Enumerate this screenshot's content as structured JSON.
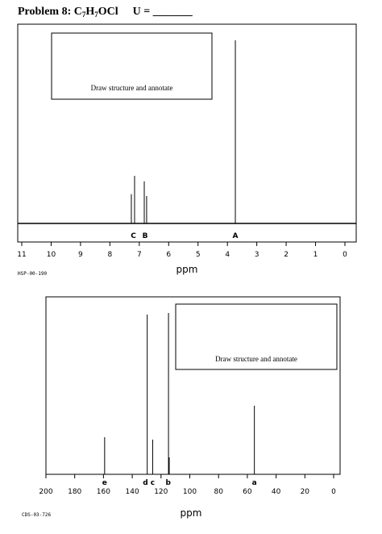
{
  "header": {
    "problem": "Problem 8:",
    "formula": [
      "C",
      "7",
      "H",
      "7",
      "OCl"
    ],
    "unsaturation": "U = _______"
  },
  "chart_data": [
    {
      "type": "spectrum",
      "x_label": "ppm",
      "code": "HSP-00-190",
      "box_text": "Draw structure and annotate",
      "xlim": [
        11,
        0
      ],
      "xticks": [
        11,
        10,
        9,
        8,
        7,
        6,
        5,
        4,
        3,
        2,
        1,
        0
      ],
      "ylim": [
        0,
        100
      ],
      "color": "#000000",
      "x": [
        7.27,
        7.16,
        6.83,
        6.75,
        3.73
      ],
      "values": [
        16,
        26,
        23,
        15,
        100
      ],
      "annotations": [
        {
          "text": "C",
          "x": 7.2
        },
        {
          "text": "B",
          "x": 6.8
        },
        {
          "text": "A",
          "x": 3.73
        }
      ]
    },
    {
      "type": "spectrum",
      "x_label": "ppm",
      "code": "CDS-03-726",
      "box_text": "Draw structure and annotate",
      "xlim": [
        200,
        0
      ],
      "xticks": [
        200,
        180,
        160,
        140,
        120,
        100,
        80,
        60,
        40,
        20,
        0
      ],
      "ylim": [
        0,
        100
      ],
      "color": "#000000",
      "x": [
        159.2,
        129.6,
        125.8,
        114.8,
        114.3,
        55.1
      ],
      "values": [
        23,
        99,
        21.5,
        100,
        10.5,
        42.5
      ],
      "annotations": [
        {
          "text": "e",
          "x": 159.2
        },
        {
          "text": "d",
          "x": 130.8
        },
        {
          "text": "c",
          "x": 125.8
        },
        {
          "text": "b",
          "x": 115
        },
        {
          "text": "a",
          "x": 55.1
        }
      ]
    }
  ]
}
